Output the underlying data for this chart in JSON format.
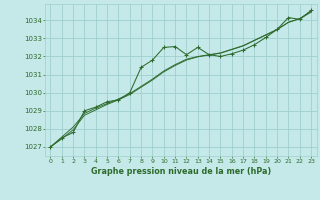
{
  "title": "Graphe pression niveau de la mer (hPa)",
  "bg_color": "#c5e8e8",
  "grid_color": "#9fcfcf",
  "line_color": "#2d6b2d",
  "xlim": [
    -0.5,
    23.5
  ],
  "ylim": [
    1026.5,
    1034.9
  ],
  "xticks": [
    0,
    1,
    2,
    3,
    4,
    5,
    6,
    7,
    8,
    9,
    10,
    11,
    12,
    13,
    14,
    15,
    16,
    17,
    18,
    19,
    20,
    21,
    22,
    23
  ],
  "yticks": [
    1027,
    1028,
    1029,
    1030,
    1031,
    1032,
    1033,
    1034
  ],
  "series1_x": [
    0,
    1,
    2,
    3,
    4,
    5,
    6,
    7,
    8,
    9,
    10,
    11,
    12,
    13,
    14,
    15,
    16,
    17,
    18,
    19,
    20,
    21,
    22,
    23
  ],
  "series1_y": [
    1027.0,
    1027.5,
    1027.8,
    1029.0,
    1029.2,
    1029.5,
    1029.6,
    1030.0,
    1031.4,
    1031.8,
    1032.5,
    1032.55,
    1032.1,
    1032.5,
    1032.1,
    1032.0,
    1032.15,
    1032.35,
    1032.65,
    1033.05,
    1033.5,
    1034.15,
    1034.05,
    1034.55
  ],
  "series2_x": [
    0,
    1,
    2,
    3,
    4,
    5,
    6,
    7,
    8,
    9,
    10,
    11,
    12,
    13,
    14,
    15,
    16,
    17,
    18,
    19,
    20,
    21,
    22,
    23
  ],
  "series2_y": [
    1027.0,
    1027.55,
    1028.1,
    1028.85,
    1029.15,
    1029.4,
    1029.65,
    1029.95,
    1030.35,
    1030.75,
    1031.2,
    1031.55,
    1031.85,
    1032.0,
    1032.1,
    1032.2,
    1032.4,
    1032.6,
    1032.9,
    1033.2,
    1033.5,
    1033.9,
    1034.1,
    1034.5
  ],
  "series3_x": [
    0,
    1,
    2,
    3,
    4,
    5,
    6,
    7,
    8,
    9,
    10,
    11,
    12,
    13,
    14,
    15,
    16,
    17,
    18,
    19,
    20,
    21,
    22,
    23
  ],
  "series3_y": [
    1027.0,
    1027.45,
    1027.95,
    1028.75,
    1029.05,
    1029.35,
    1029.6,
    1029.9,
    1030.3,
    1030.7,
    1031.15,
    1031.5,
    1031.8,
    1031.98,
    1032.08,
    1032.18,
    1032.38,
    1032.58,
    1032.88,
    1033.18,
    1033.48,
    1033.88,
    1034.08,
    1034.45
  ]
}
